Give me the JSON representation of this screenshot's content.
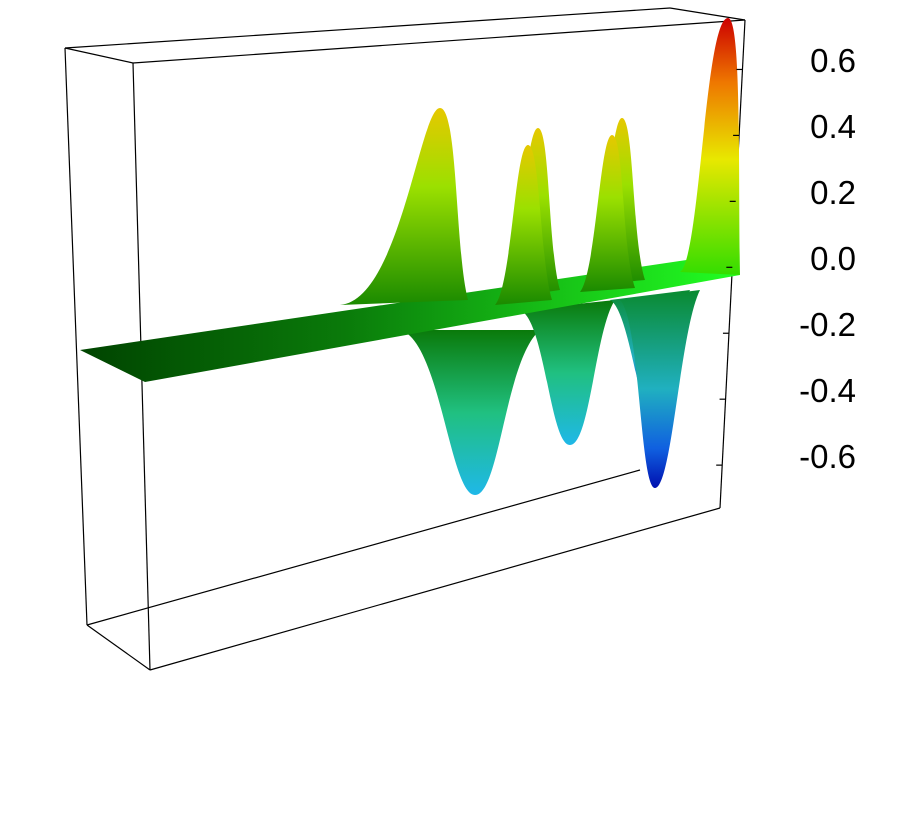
{
  "chart_data": {
    "type": "surface3d",
    "zlim": [
      -0.73,
      0.75
    ],
    "zticks": [
      0.6,
      0.4,
      0.2,
      {
        "value": 0,
        "label": "0.0"
      },
      -0.2,
      -0.4,
      -0.6
    ]
  }
}
